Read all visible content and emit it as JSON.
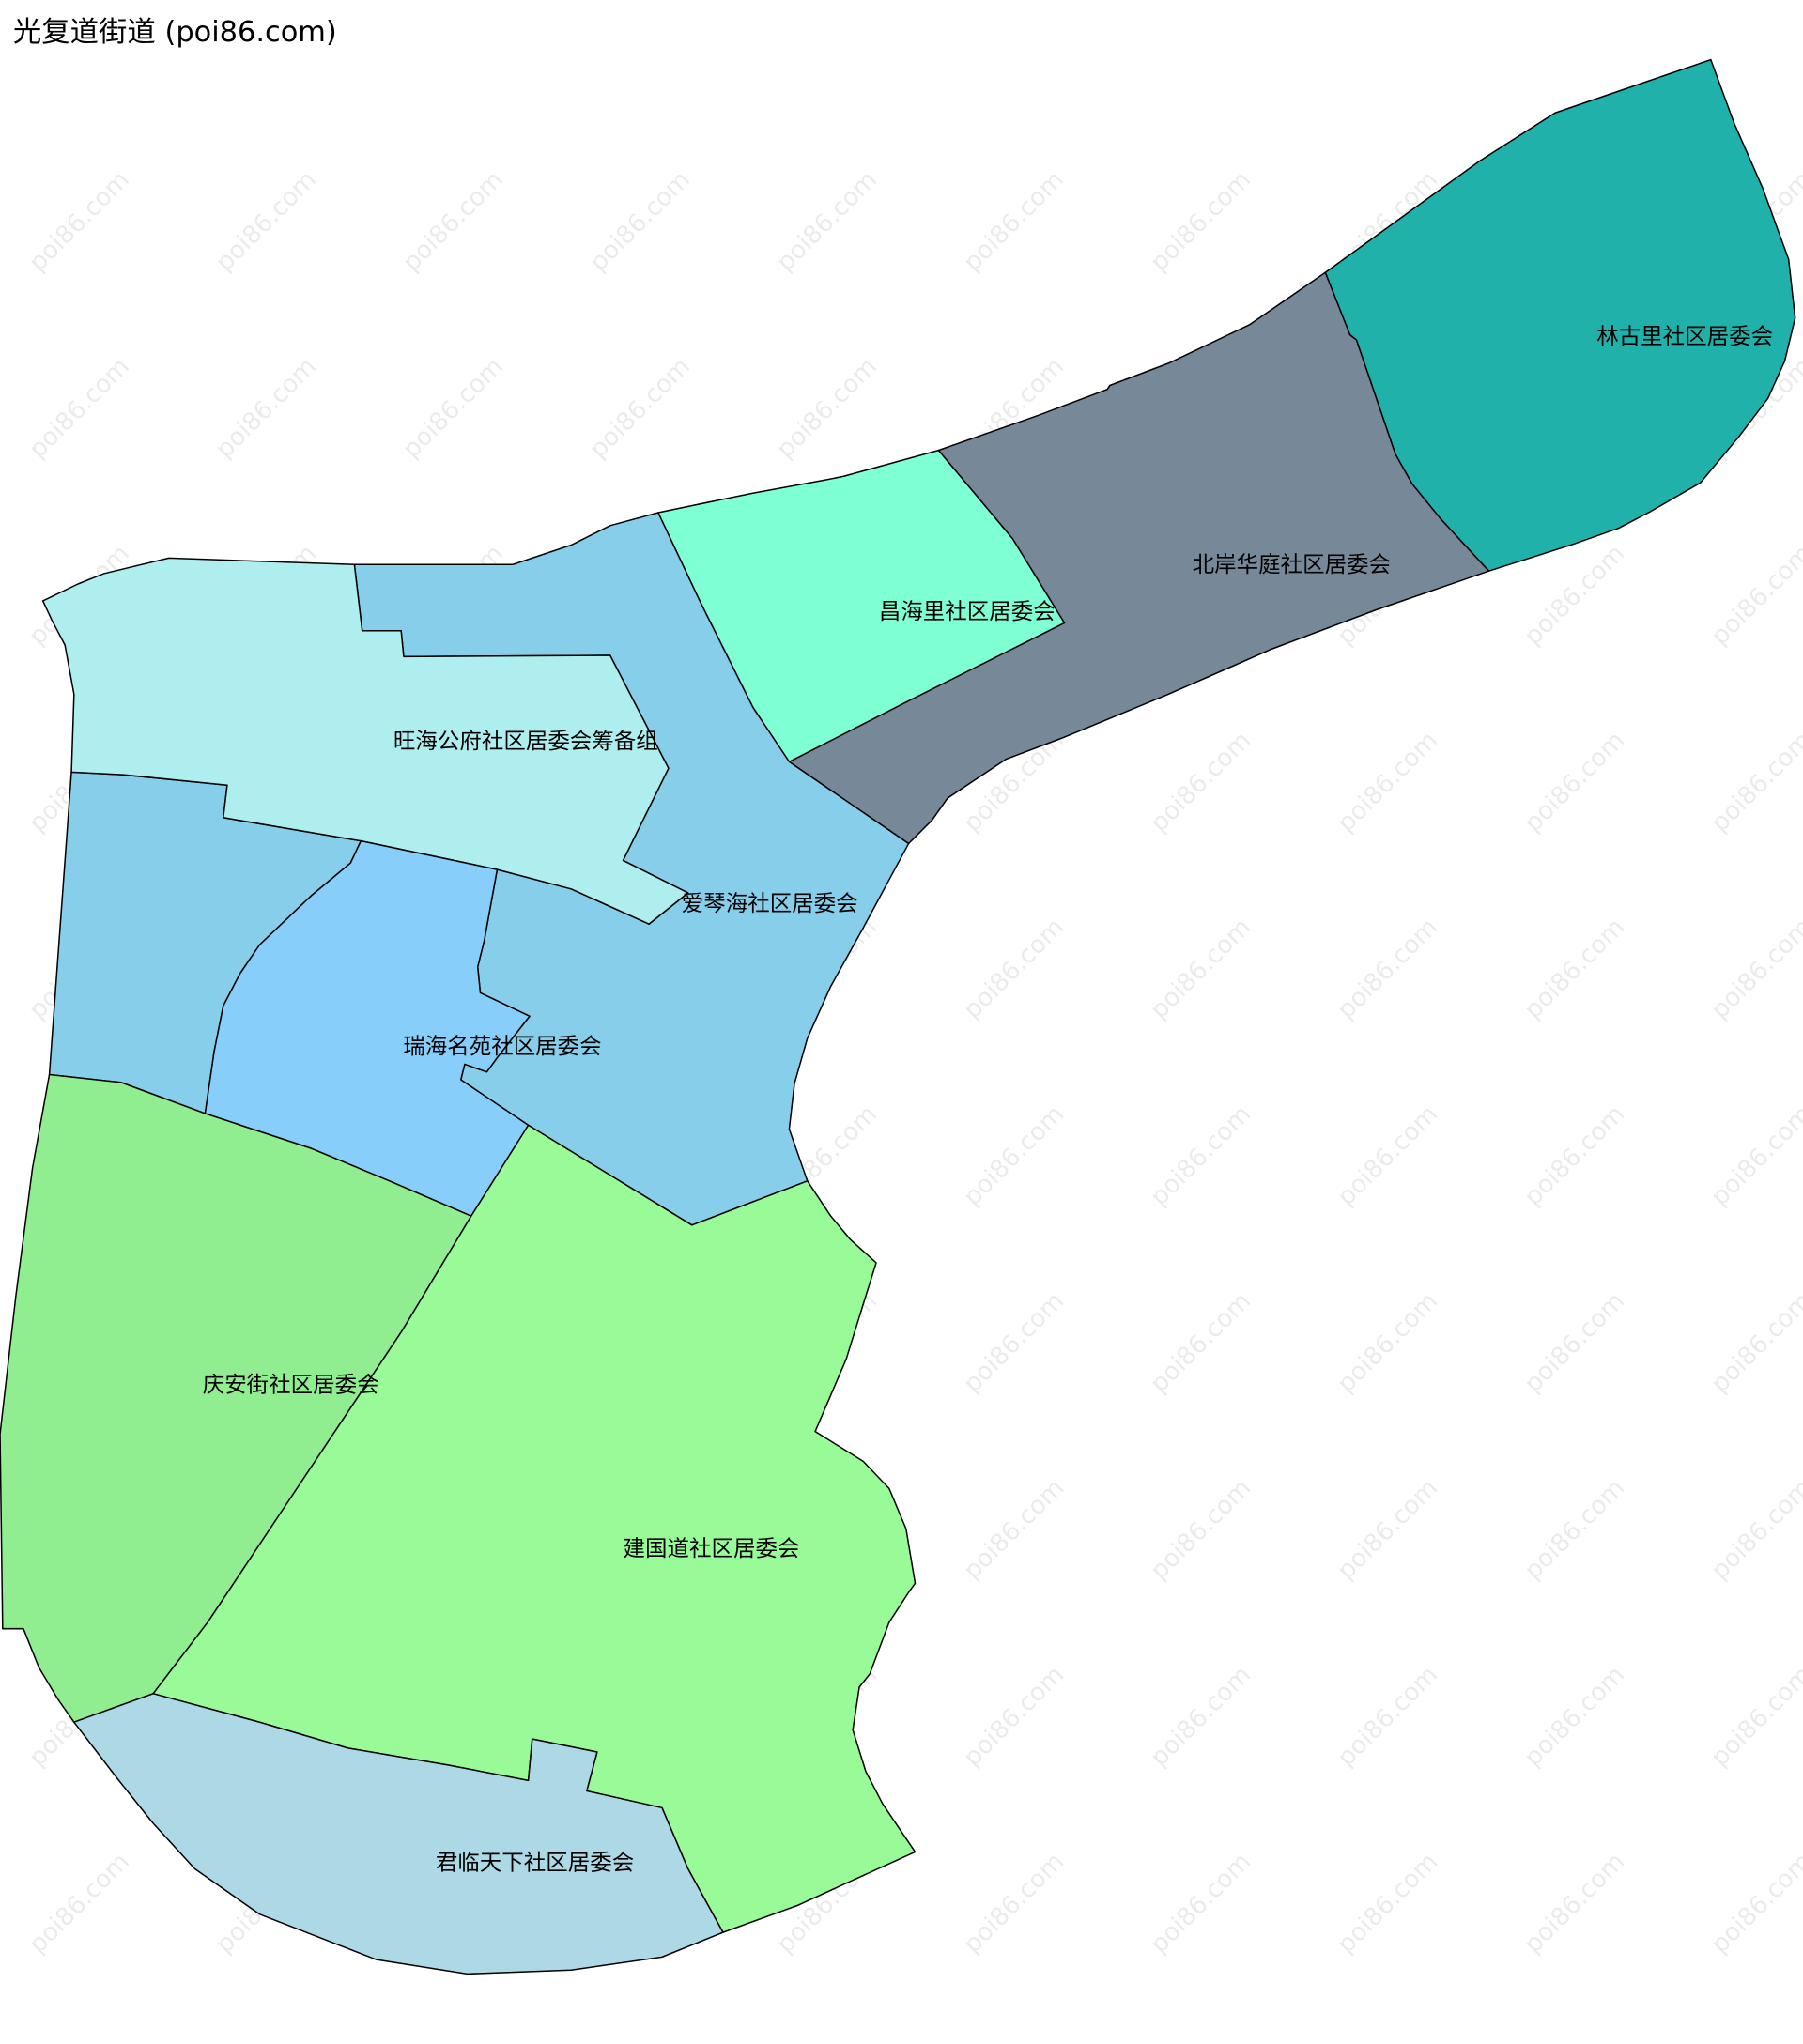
{
  "title": "光复道街道 (poi86.com)",
  "watermark": "poi86.com",
  "regions": [
    {
      "name": "林古里社区居委会",
      "color": "#20B2AA"
    },
    {
      "name": "北岸华庭社区居委会",
      "color": "#778899"
    },
    {
      "name": "昌海里社区居委会",
      "color": "#7FFFD4"
    },
    {
      "name": "爱琴海社区居委会",
      "color": "#87CEEB"
    },
    {
      "name": "旺海公府社区居委会筹备组",
      "color": "#AFEEEE"
    },
    {
      "name": "瑞海名苑社区居委会",
      "color": "#87CEFA"
    },
    {
      "name": "庆安街社区居委会",
      "color": "#90EE90"
    },
    {
      "name": "建国道社区居委会",
      "color": "#98FB98"
    },
    {
      "name": "君临天下社区居委会",
      "color": "#ADD8E6"
    }
  ]
}
